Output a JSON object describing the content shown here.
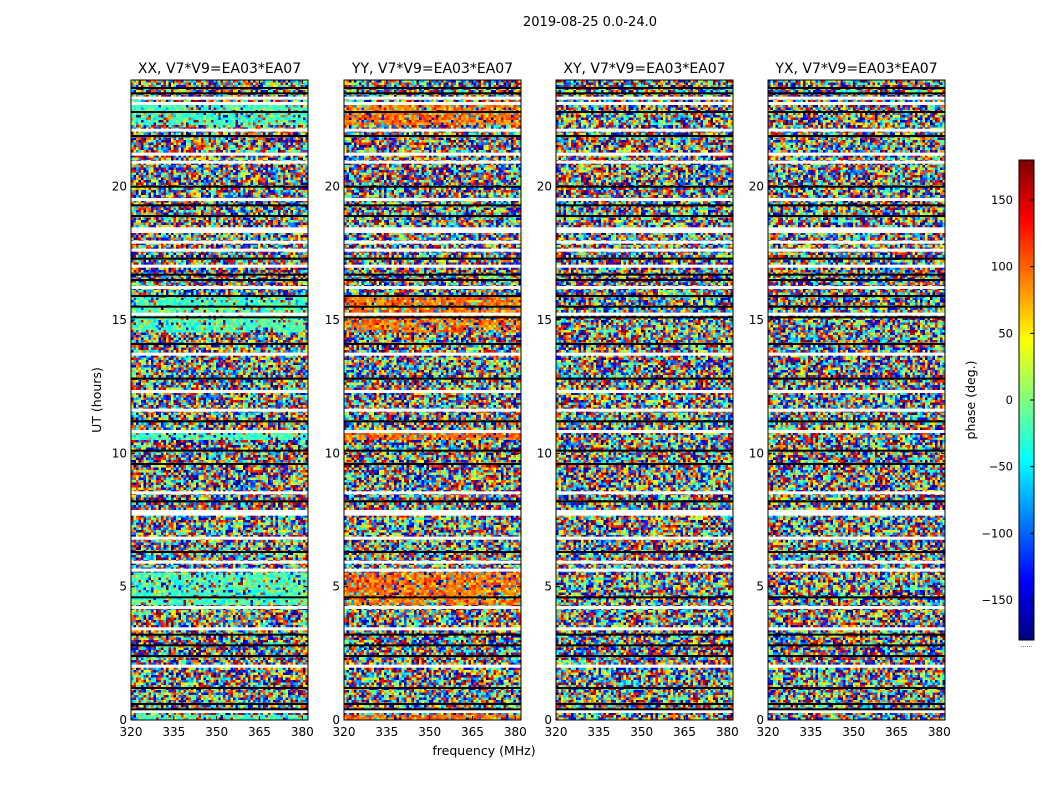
{
  "figure": {
    "suptitle": "2019-08-25 0.0-24.0",
    "xlabel": "frequency (MHz)",
    "ylabel": "UT (hours)"
  },
  "chart_data": {
    "type": "heatmap",
    "description_kind": "dynamic phase spectrum panels",
    "x_range": [
      320,
      382
    ],
    "x_ticks": [
      320,
      335,
      350,
      365,
      380
    ],
    "y_range": [
      0,
      24
    ],
    "y_ticks": [
      0,
      5,
      10,
      15,
      20
    ],
    "xlabel": "frequency (MHz)",
    "ylabel": "UT (hours)",
    "panels": [
      {
        "title": "XX, V7*V9=EA03*EA07",
        "pol": "XX",
        "coherent_phase": -20
      },
      {
        "title": "YY, V7*V9=EA03*EA07",
        "pol": "YY",
        "coherent_phase": 95
      },
      {
        "title": "XY, V7*V9=EA03*EA07",
        "pol": "XY",
        "coherent_phase": null
      },
      {
        "title": "YX, V7*V9=EA03*EA07",
        "pol": "YX",
        "coherent_phase": null
      }
    ],
    "coherent_time_bands": [
      [
        0.0,
        0.2
      ],
      [
        4.3,
        5.5
      ],
      [
        10.5,
        10.8
      ],
      [
        14.5,
        15.9
      ],
      [
        22.3,
        23.1
      ]
    ],
    "flagged_white_rows": [
      0.3,
      2.0,
      3.4,
      4.2,
      5.6,
      5.9,
      6.8,
      7.7,
      7.8,
      8.5,
      10.8,
      11.6,
      12.3,
      13.7,
      15.2,
      16.2,
      17.0,
      17.6,
      17.9,
      18.3,
      18.4,
      19.5,
      20.9,
      21.2,
      22.1,
      23.1,
      23.3
    ],
    "blank_black_rows": [
      0.4,
      0.6,
      1.2,
      2.4,
      2.8,
      3.2,
      4.6,
      6.3,
      8.2,
      9.6,
      10.1,
      11.2,
      12.8,
      14.1,
      15.1,
      15.5,
      15.9,
      16.5,
      16.7,
      17.3,
      18.9,
      19.3,
      20.0,
      21.9,
      22.8,
      23.5,
      23.7
    ],
    "colorbar": {
      "label": "phase (deg.)",
      "range": [
        -180,
        180
      ],
      "ticks": [
        150,
        100,
        50,
        0,
        -50,
        -100,
        -150
      ],
      "tick_labels": [
        "150",
        "100",
        "50",
        "0",
        "−50",
        "−100",
        "−150"
      ],
      "colormap": "jet",
      "colors": [
        "#00007f",
        "#0000ff",
        "#007fff",
        "#00ffff",
        "#7fff7f",
        "#ffff00",
        "#ff7f00",
        "#ff0000",
        "#7f0000"
      ],
      "under_label": "......"
    }
  }
}
